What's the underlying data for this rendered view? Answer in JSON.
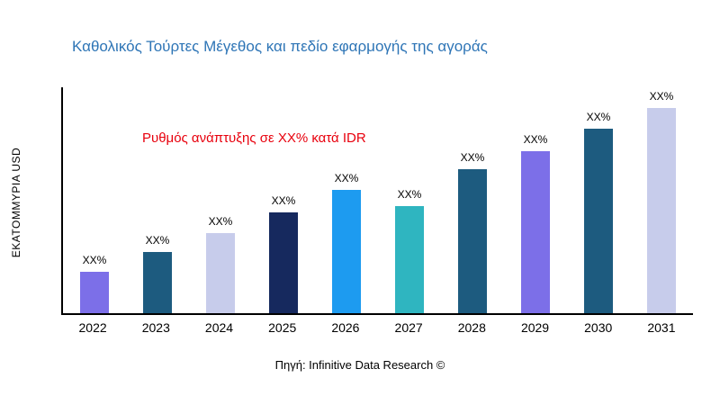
{
  "title": "Καθολικός Τούρτες Μέγεθος και πεδίο εφαρμογής της αγοράς",
  "ylabel": "ΕΚΑΤΟΜΜΥΡΙΑ USD",
  "annotation": "Ρυθμός ανάπτυξης σε XX% κατά IDR",
  "source": "Πηγή: Infinitive Data Research ©",
  "colors": {
    "title": "#2e75b6",
    "annotation": "#e8000d",
    "axis": "#000000"
  },
  "chart_data": {
    "type": "bar",
    "title": "Καθολικός Τούρτες Μέγεθος και πεδίο εφαρμογής της αγοράς",
    "xlabel": "",
    "ylabel": "ΕΚΑΤΟΜΜΥΡΙΑ USD",
    "ylim": [
      0,
      110
    ],
    "grid": false,
    "legend": "none",
    "categories": [
      "2022",
      "2023",
      "2024",
      "2025",
      "2026",
      "2027",
      "2028",
      "2029",
      "2030",
      "2031"
    ],
    "values": [
      20,
      30,
      39,
      49,
      60,
      52,
      70,
      79,
      90,
      100
    ],
    "bar_labels": [
      "XX%",
      "XX%",
      "XX%",
      "XX%",
      "XX%",
      "XX%",
      "XX%",
      "XX%",
      "XX%",
      "XX%"
    ],
    "bar_colors": [
      "#7c6fe8",
      "#1d5b7f",
      "#c7cceb",
      "#16295e",
      "#1d9bf0",
      "#2fb5c0",
      "#1d5b7f",
      "#7c6fe8",
      "#1d5b7f",
      "#c7cceb"
    ],
    "annotations": [
      "Ρυθμός ανάπτυξης σε XX% κατά IDR"
    ]
  }
}
